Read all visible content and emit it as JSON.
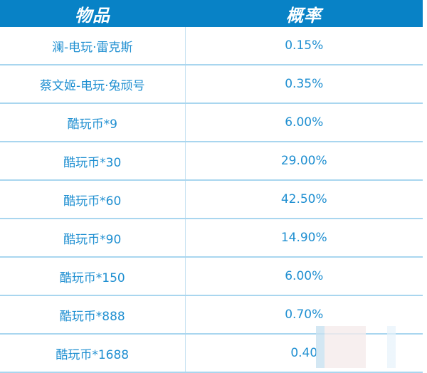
{
  "header": {
    "item": "物品",
    "probability": "概率"
  },
  "rows": [
    {
      "item": "澜-电玩·雷克斯",
      "probability": "0.15%"
    },
    {
      "item": "蔡文姬-电玩·兔顽号",
      "probability": "0.35%"
    },
    {
      "item": "酷玩币*9",
      "probability": "6.00%"
    },
    {
      "item": "酷玩币*30",
      "probability": "29.00%"
    },
    {
      "item": "酷玩币*60",
      "probability": "42.50%"
    },
    {
      "item": "酷玩币*90",
      "probability": "14.90%"
    },
    {
      "item": "酷玩币*150",
      "probability": "6.00%"
    },
    {
      "item": "酷玩币*888",
      "probability": "0.70%"
    },
    {
      "item": "酷玩币*1688",
      "probability": "0.40"
    }
  ],
  "colors": {
    "header_bg": "#0882c6",
    "text": "#1f8fd1"
  }
}
